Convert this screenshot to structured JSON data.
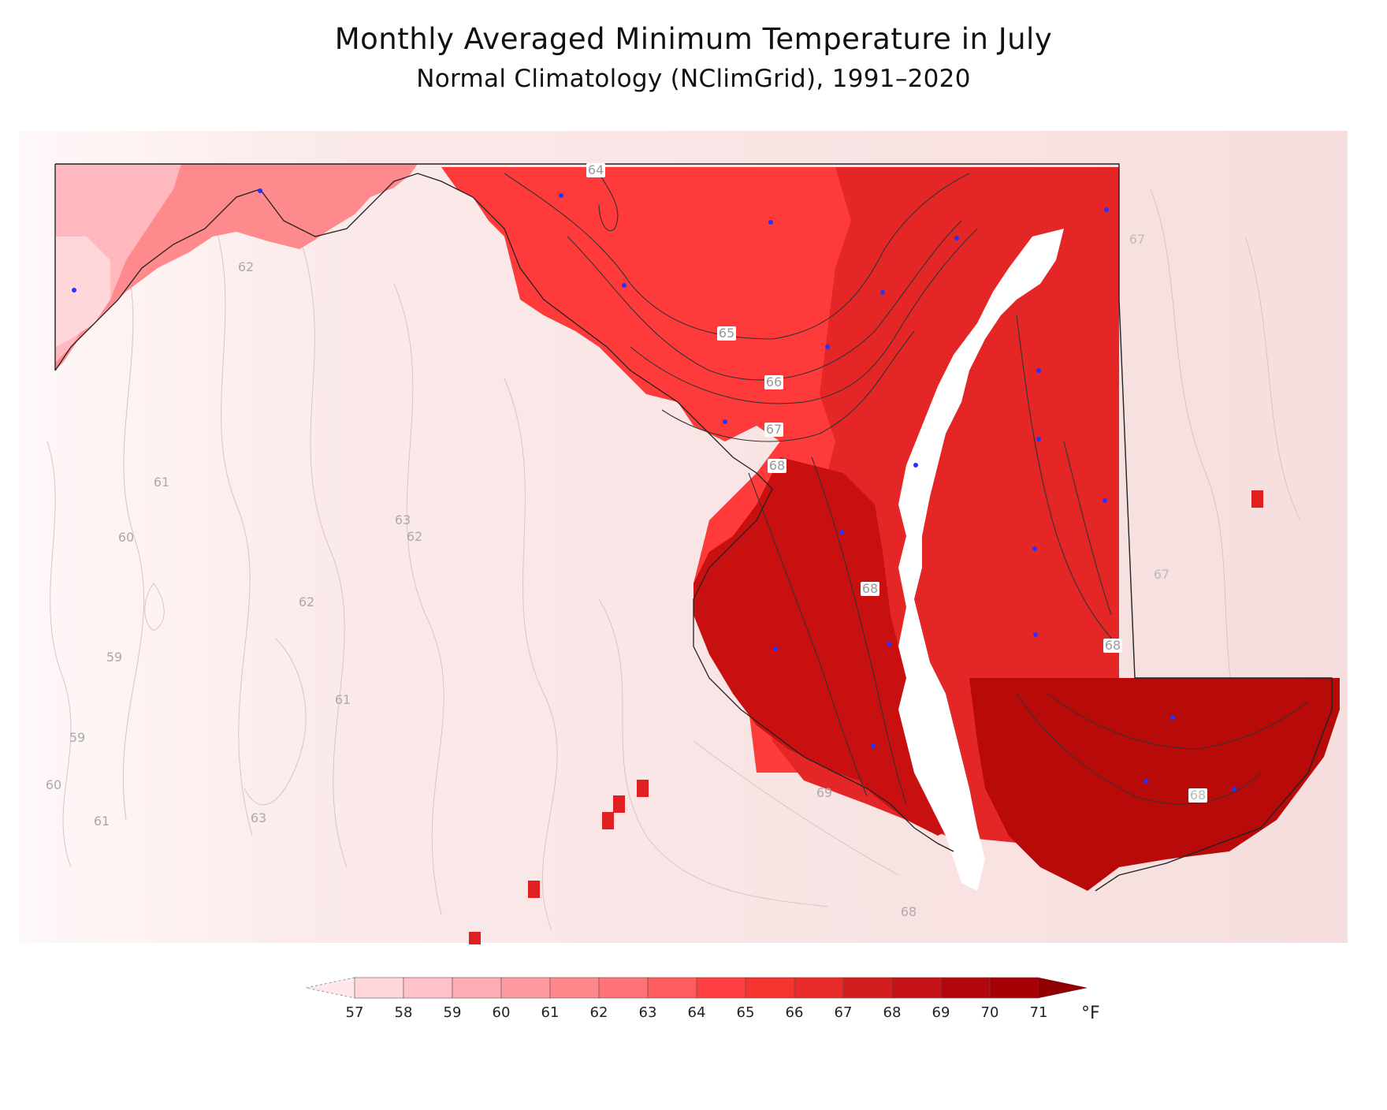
{
  "title": "Monthly Averaged Minimum Temperature in July",
  "subtitle": "Normal Climatology (NClimGrid), 1991–2020",
  "colorbar": {
    "ticks": [
      "57",
      "58",
      "59",
      "60",
      "61",
      "62",
      "63",
      "64",
      "65",
      "66",
      "67",
      "68",
      "69",
      "70",
      "71"
    ],
    "unit": "°F",
    "colors": [
      "#ffd6dc",
      "#ffc2c8",
      "#ffadb4",
      "#ff9aa0",
      "#ff868b",
      "#ff7276",
      "#ff5c60",
      "#ff3f42",
      "#f5332f",
      "#e82a28",
      "#d41d1e",
      "#c41216",
      "#b4070d",
      "#a60007"
    ],
    "under_color": "#ffe8ec",
    "over_color": "#8f0000"
  },
  "contour_labels": [
    "64",
    "65",
    "66",
    "67",
    "68",
    "67",
    "68",
    "67",
    "68",
    "62",
    "61",
    "60",
    "63",
    "62",
    "62",
    "59",
    "61",
    "59",
    "60",
    "61",
    "63",
    "68",
    "69",
    "68"
  ],
  "map": {
    "background_color": "#f9e3e3",
    "fill_colors": {
      "warm_west": "#ff8080",
      "mountain": "#ffb6bb",
      "central": "#ff3535",
      "east": "#e02424",
      "southern": "#c81010",
      "bay": "#ffffff"
    },
    "station_color": "#2a2aff"
  }
}
